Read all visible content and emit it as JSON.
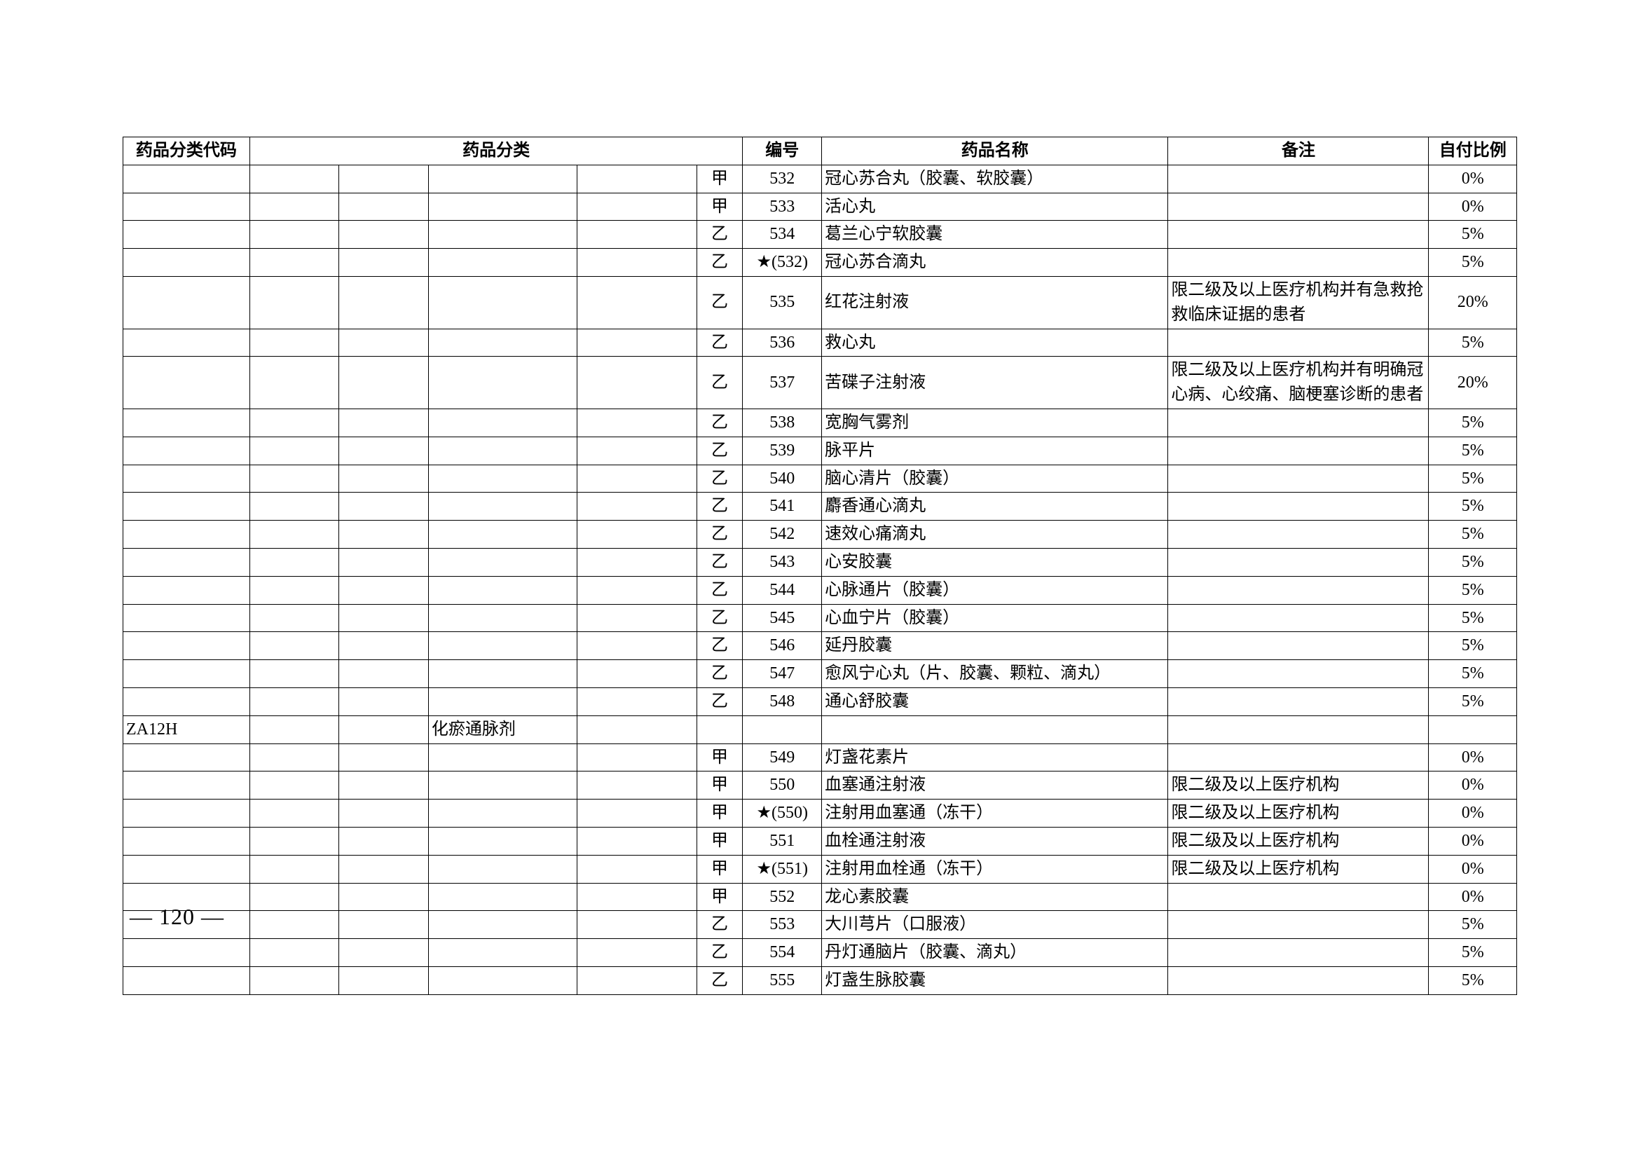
{
  "headers": {
    "code": "药品分类代码",
    "category": "药品分类",
    "number": "编号",
    "name": "药品名称",
    "remark": "备注",
    "ratio": "自付比例"
  },
  "rows": [
    {
      "code": "",
      "cat1": "",
      "cat2": "",
      "cat3": "",
      "cat4": "",
      "cls": "甲",
      "num": "532",
      "name": "冠心苏合丸（胶囊、软胶囊）",
      "remark": "",
      "ratio": "0%",
      "tall": false
    },
    {
      "code": "",
      "cat1": "",
      "cat2": "",
      "cat3": "",
      "cat4": "",
      "cls": "甲",
      "num": "533",
      "name": "活心丸",
      "remark": "",
      "ratio": "0%",
      "tall": false
    },
    {
      "code": "",
      "cat1": "",
      "cat2": "",
      "cat3": "",
      "cat4": "",
      "cls": "乙",
      "num": "534",
      "name": "葛兰心宁软胶囊",
      "remark": "",
      "ratio": "5%",
      "tall": false
    },
    {
      "code": "",
      "cat1": "",
      "cat2": "",
      "cat3": "",
      "cat4": "",
      "cls": "乙",
      "num": "★(532)",
      "name": "冠心苏合滴丸",
      "remark": "",
      "ratio": "5%",
      "tall": false
    },
    {
      "code": "",
      "cat1": "",
      "cat2": "",
      "cat3": "",
      "cat4": "",
      "cls": "乙",
      "num": "535",
      "name": "红花注射液",
      "remark": "限二级及以上医疗机构并有急救抢救临床证据的患者",
      "ratio": "20%",
      "tall": true
    },
    {
      "code": "",
      "cat1": "",
      "cat2": "",
      "cat3": "",
      "cat4": "",
      "cls": "乙",
      "num": "536",
      "name": "救心丸",
      "remark": "",
      "ratio": "5%",
      "tall": false
    },
    {
      "code": "",
      "cat1": "",
      "cat2": "",
      "cat3": "",
      "cat4": "",
      "cls": "乙",
      "num": "537",
      "name": "苦碟子注射液",
      "remark": "限二级及以上医疗机构并有明确冠心病、心绞痛、脑梗塞诊断的患者",
      "ratio": "20%",
      "tall": true
    },
    {
      "code": "",
      "cat1": "",
      "cat2": "",
      "cat3": "",
      "cat4": "",
      "cls": "乙",
      "num": "538",
      "name": "宽胸气雾剂",
      "remark": "",
      "ratio": "5%",
      "tall": false
    },
    {
      "code": "",
      "cat1": "",
      "cat2": "",
      "cat3": "",
      "cat4": "",
      "cls": "乙",
      "num": "539",
      "name": "脉平片",
      "remark": "",
      "ratio": "5%",
      "tall": false
    },
    {
      "code": "",
      "cat1": "",
      "cat2": "",
      "cat3": "",
      "cat4": "",
      "cls": "乙",
      "num": "540",
      "name": "脑心清片（胶囊）",
      "remark": "",
      "ratio": "5%",
      "tall": false
    },
    {
      "code": "",
      "cat1": "",
      "cat2": "",
      "cat3": "",
      "cat4": "",
      "cls": "乙",
      "num": "541",
      "name": "麝香通心滴丸",
      "remark": "",
      "ratio": "5%",
      "tall": false
    },
    {
      "code": "",
      "cat1": "",
      "cat2": "",
      "cat3": "",
      "cat4": "",
      "cls": "乙",
      "num": "542",
      "name": "速效心痛滴丸",
      "remark": "",
      "ratio": "5%",
      "tall": false
    },
    {
      "code": "",
      "cat1": "",
      "cat2": "",
      "cat3": "",
      "cat4": "",
      "cls": "乙",
      "num": "543",
      "name": "心安胶囊",
      "remark": "",
      "ratio": "5%",
      "tall": false
    },
    {
      "code": "",
      "cat1": "",
      "cat2": "",
      "cat3": "",
      "cat4": "",
      "cls": "乙",
      "num": "544",
      "name": "心脉通片（胶囊）",
      "remark": "",
      "ratio": "5%",
      "tall": false
    },
    {
      "code": "",
      "cat1": "",
      "cat2": "",
      "cat3": "",
      "cat4": "",
      "cls": "乙",
      "num": "545",
      "name": "心血宁片（胶囊）",
      "remark": "",
      "ratio": "5%",
      "tall": false
    },
    {
      "code": "",
      "cat1": "",
      "cat2": "",
      "cat3": "",
      "cat4": "",
      "cls": "乙",
      "num": "546",
      "name": "延丹胶囊",
      "remark": "",
      "ratio": "5%",
      "tall": false
    },
    {
      "code": "",
      "cat1": "",
      "cat2": "",
      "cat3": "",
      "cat4": "",
      "cls": "乙",
      "num": "547",
      "name": "愈风宁心丸（片、胶囊、颗粒、滴丸）",
      "remark": "",
      "ratio": "5%",
      "tall": false
    },
    {
      "code": "",
      "cat1": "",
      "cat2": "",
      "cat3": "",
      "cat4": "",
      "cls": "乙",
      "num": "548",
      "name": "通心舒胶囊",
      "remark": "",
      "ratio": "5%",
      "tall": false
    },
    {
      "code": "ZA12H",
      "cat1": "",
      "cat2": "",
      "cat3": "化瘀通脉剂",
      "cat4": "",
      "cls": "",
      "num": "",
      "name": "",
      "remark": "",
      "ratio": "",
      "tall": false
    },
    {
      "code": "",
      "cat1": "",
      "cat2": "",
      "cat3": "",
      "cat4": "",
      "cls": "甲",
      "num": "549",
      "name": "灯盏花素片",
      "remark": "",
      "ratio": "0%",
      "tall": false
    },
    {
      "code": "",
      "cat1": "",
      "cat2": "",
      "cat3": "",
      "cat4": "",
      "cls": "甲",
      "num": "550",
      "name": "血塞通注射液",
      "remark": "限二级及以上医疗机构",
      "ratio": "0%",
      "tall": false
    },
    {
      "code": "",
      "cat1": "",
      "cat2": "",
      "cat3": "",
      "cat4": "",
      "cls": "甲",
      "num": "★(550)",
      "name": "注射用血塞通（冻干）",
      "remark": "限二级及以上医疗机构",
      "ratio": "0%",
      "tall": false
    },
    {
      "code": "",
      "cat1": "",
      "cat2": "",
      "cat3": "",
      "cat4": "",
      "cls": "甲",
      "num": "551",
      "name": "血栓通注射液",
      "remark": "限二级及以上医疗机构",
      "ratio": "0%",
      "tall": false
    },
    {
      "code": "",
      "cat1": "",
      "cat2": "",
      "cat3": "",
      "cat4": "",
      "cls": "甲",
      "num": "★(551)",
      "name": "注射用血栓通（冻干）",
      "remark": "限二级及以上医疗机构",
      "ratio": "0%",
      "tall": false
    },
    {
      "code": "",
      "cat1": "",
      "cat2": "",
      "cat3": "",
      "cat4": "",
      "cls": "甲",
      "num": "552",
      "name": "龙心素胶囊",
      "remark": "",
      "ratio": "0%",
      "tall": false
    },
    {
      "code": "",
      "cat1": "",
      "cat2": "",
      "cat3": "",
      "cat4": "",
      "cls": "乙",
      "num": "553",
      "name": "大川芎片（口服液）",
      "remark": "",
      "ratio": "5%",
      "tall": false
    },
    {
      "code": "",
      "cat1": "",
      "cat2": "",
      "cat3": "",
      "cat4": "",
      "cls": "乙",
      "num": "554",
      "name": "丹灯通脑片（胶囊、滴丸）",
      "remark": "",
      "ratio": "5%",
      "tall": false
    },
    {
      "code": "",
      "cat1": "",
      "cat2": "",
      "cat3": "",
      "cat4": "",
      "cls": "乙",
      "num": "555",
      "name": "灯盏生脉胶囊",
      "remark": "",
      "ratio": "5%",
      "tall": false
    }
  ],
  "pageNumber": "— 120 —"
}
